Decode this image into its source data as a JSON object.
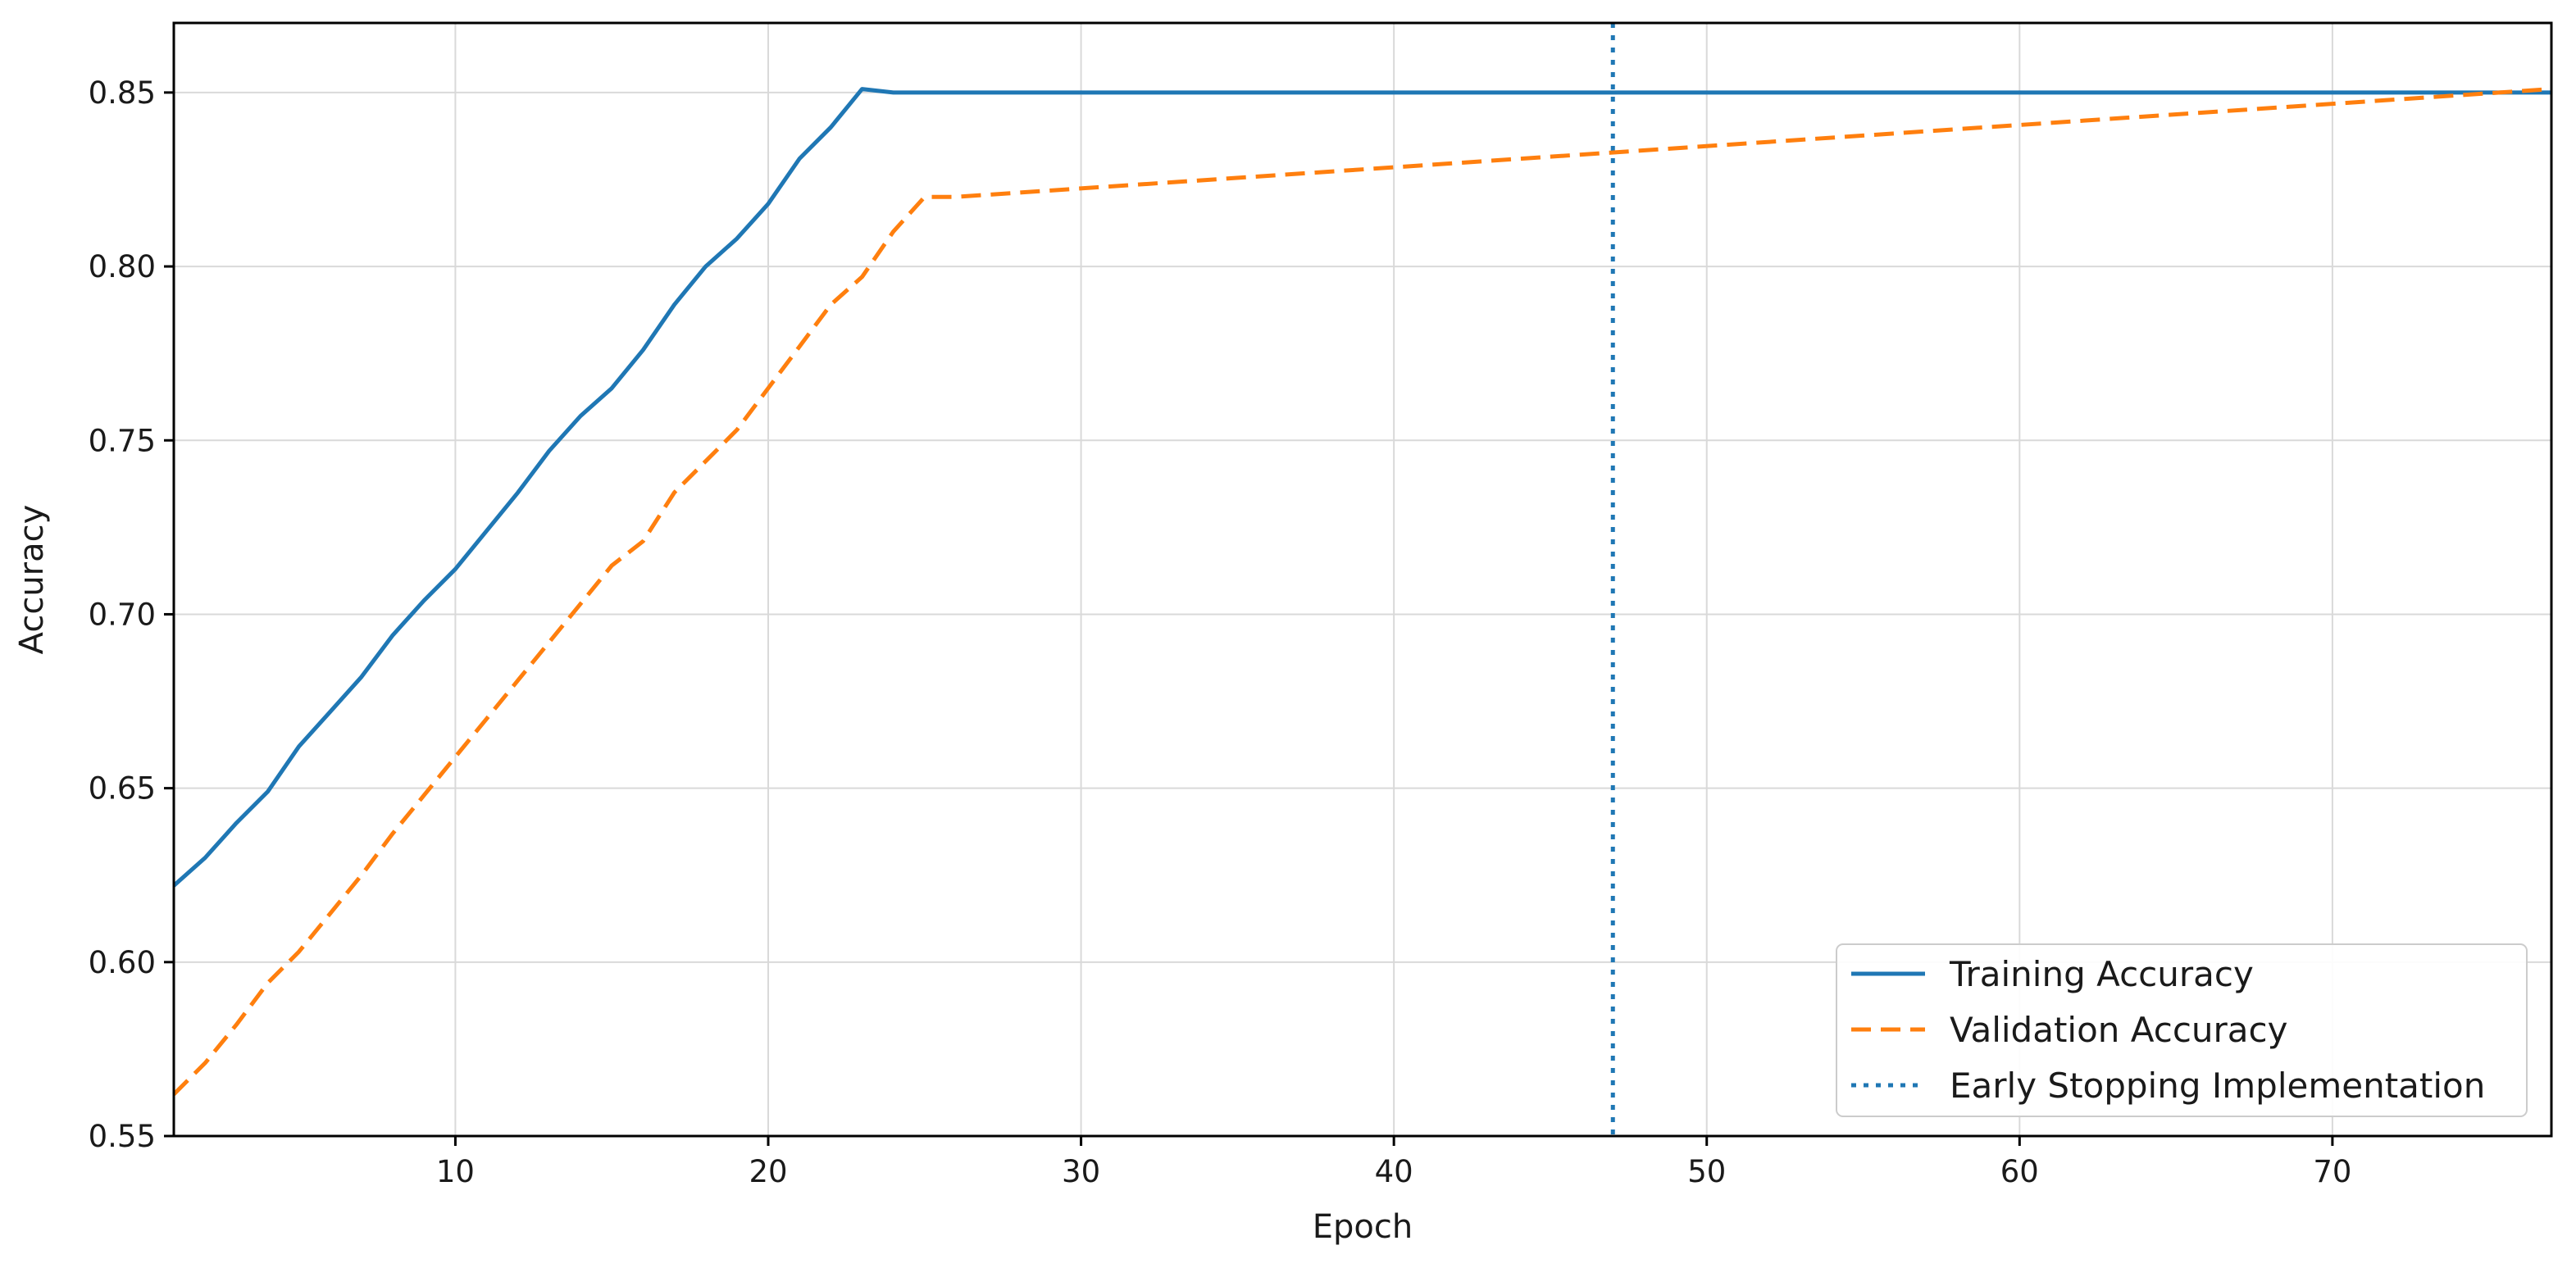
{
  "chart_data": {
    "type": "line",
    "title": "",
    "xlabel": "Epoch",
    "ylabel": "Accuracy",
    "xlim": [
      1,
      77
    ],
    "ylim": [
      0.55,
      0.87
    ],
    "x_ticks": [
      10,
      20,
      30,
      40,
      50,
      60,
      70
    ],
    "y_ticks": [
      0.55,
      0.6,
      0.65,
      0.7,
      0.75,
      0.8,
      0.85
    ],
    "grid": true,
    "legend_position": "lower-right",
    "series": [
      {
        "name": "Training Accuracy",
        "color": "#1f77b4",
        "style": "solid",
        "x": [
          1,
          2,
          3,
          4,
          5,
          6,
          7,
          8,
          9,
          10,
          11,
          12,
          13,
          14,
          15,
          16,
          17,
          18,
          19,
          20,
          21,
          22,
          23,
          24,
          25,
          77
        ],
        "values": [
          0.622,
          0.63,
          0.64,
          0.649,
          0.662,
          0.672,
          0.682,
          0.694,
          0.704,
          0.713,
          0.724,
          0.735,
          0.747,
          0.757,
          0.765,
          0.776,
          0.789,
          0.8,
          0.808,
          0.818,
          0.831,
          0.84,
          0.851,
          0.85,
          0.85,
          0.85
        ]
      },
      {
        "name": "Validation Accuracy",
        "color": "#ff7f0e",
        "style": "dashed",
        "x": [
          1,
          2,
          3,
          4,
          5,
          6,
          7,
          8,
          9,
          10,
          11,
          12,
          13,
          14,
          15,
          16,
          17,
          18,
          19,
          20,
          21,
          22,
          23,
          24,
          25,
          26,
          77
        ],
        "values": [
          0.562,
          0.571,
          0.582,
          0.594,
          0.603,
          0.614,
          0.625,
          0.637,
          0.648,
          0.659,
          0.67,
          0.681,
          0.692,
          0.703,
          0.714,
          0.721,
          0.735,
          0.744,
          0.753,
          0.765,
          0.777,
          0.789,
          0.797,
          0.81,
          0.82,
          0.82,
          0.851
        ]
      }
    ],
    "vertical_lines": [
      {
        "name": "Early Stopping Implementation",
        "x": 47,
        "color": "#1f77b4",
        "style": "dotted"
      }
    ]
  }
}
